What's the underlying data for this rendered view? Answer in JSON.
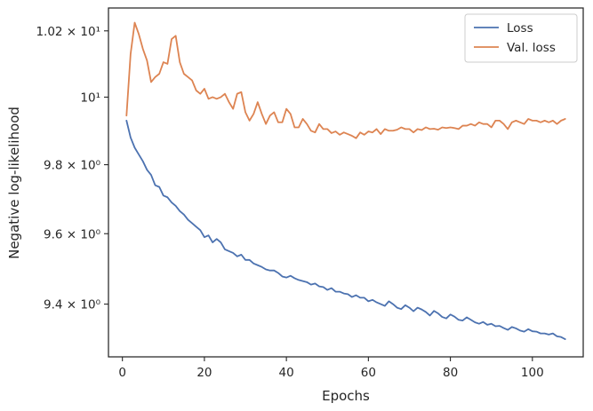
{
  "chart_data": {
    "type": "line",
    "xlabel": "Epochs",
    "ylabel": "Negative log-likelihood",
    "xlim": [
      -3.4,
      112.4
    ],
    "ylim": [
      9.253,
      10.27
    ],
    "y_scale": "log",
    "grid": false,
    "legend_position": "top-right",
    "x_ticks": [
      {
        "value": 0,
        "label": "0"
      },
      {
        "value": 20,
        "label": "20"
      },
      {
        "value": 40,
        "label": "40"
      },
      {
        "value": 60,
        "label": "60"
      },
      {
        "value": 80,
        "label": "80"
      },
      {
        "value": 100,
        "label": "100"
      }
    ],
    "y_ticks": [
      {
        "value": 9.4,
        "label": "9.4 × 10⁰"
      },
      {
        "value": 9.6,
        "label": "9.6 × 10⁰"
      },
      {
        "value": 9.8,
        "label": "9.8 × 10⁰"
      },
      {
        "value": 10.0,
        "label": "10¹"
      },
      {
        "value": 10.2,
        "label": "1.02 × 10¹"
      }
    ],
    "series": [
      {
        "name": "Loss",
        "color": "#4c72b0",
        "x": [
          1,
          2,
          3,
          4,
          5,
          6,
          7,
          8,
          9,
          10,
          11,
          12,
          13,
          14,
          15,
          16,
          17,
          18,
          19,
          20,
          21,
          22,
          23,
          24,
          25,
          26,
          27,
          28,
          29,
          30,
          31,
          32,
          33,
          34,
          35,
          36,
          37,
          38,
          39,
          40,
          41,
          42,
          43,
          44,
          45,
          46,
          47,
          48,
          49,
          50,
          51,
          52,
          53,
          54,
          55,
          56,
          57,
          58,
          59,
          60,
          61,
          62,
          63,
          64,
          65,
          66,
          67,
          68,
          69,
          70,
          71,
          72,
          73,
          74,
          75,
          76,
          77,
          78,
          79,
          80,
          81,
          82,
          83,
          84,
          85,
          86,
          87,
          88,
          89,
          90,
          91,
          92,
          93,
          94,
          95,
          96,
          97,
          98,
          99,
          100,
          101,
          102,
          103,
          104,
          105,
          106,
          107,
          108
        ],
        "values": [
          9.93,
          9.88,
          9.85,
          9.83,
          9.81,
          9.785,
          9.77,
          9.74,
          9.735,
          9.71,
          9.705,
          9.69,
          9.68,
          9.665,
          9.655,
          9.64,
          9.63,
          9.62,
          9.61,
          9.59,
          9.595,
          9.575,
          9.585,
          9.575,
          9.555,
          9.55,
          9.545,
          9.535,
          9.54,
          9.525,
          9.525,
          9.515,
          9.51,
          9.505,
          9.498,
          9.495,
          9.495,
          9.488,
          9.478,
          9.475,
          9.48,
          9.473,
          9.468,
          9.465,
          9.462,
          9.455,
          9.458,
          9.45,
          9.448,
          9.44,
          9.445,
          9.435,
          9.435,
          9.43,
          9.428,
          9.42,
          9.425,
          9.418,
          9.418,
          9.408,
          9.412,
          9.405,
          9.4,
          9.395,
          9.408,
          9.4,
          9.39,
          9.386,
          9.397,
          9.39,
          9.38,
          9.39,
          9.385,
          9.378,
          9.368,
          9.381,
          9.374,
          9.364,
          9.36,
          9.371,
          9.365,
          9.356,
          9.354,
          9.363,
          9.356,
          9.349,
          9.345,
          9.35,
          9.342,
          9.345,
          9.338,
          9.339,
          9.333,
          9.328,
          9.336,
          9.332,
          9.326,
          9.323,
          9.33,
          9.324,
          9.323,
          9.318,
          9.318,
          9.315,
          9.318,
          9.31,
          9.308,
          9.302
        ]
      },
      {
        "name": "Val. loss",
        "color": "#dd8452",
        "x": [
          1,
          2,
          3,
          4,
          5,
          6,
          7,
          8,
          9,
          10,
          11,
          12,
          13,
          14,
          15,
          16,
          17,
          18,
          19,
          20,
          21,
          22,
          23,
          24,
          25,
          26,
          27,
          28,
          29,
          30,
          31,
          32,
          33,
          34,
          35,
          36,
          37,
          38,
          39,
          40,
          41,
          42,
          43,
          44,
          45,
          46,
          47,
          48,
          49,
          50,
          51,
          52,
          53,
          54,
          55,
          56,
          57,
          58,
          59,
          60,
          61,
          62,
          63,
          64,
          65,
          66,
          67,
          68,
          69,
          70,
          71,
          72,
          73,
          74,
          75,
          76,
          77,
          78,
          79,
          80,
          81,
          82,
          83,
          84,
          85,
          86,
          87,
          88,
          89,
          90,
          91,
          92,
          93,
          94,
          95,
          96,
          97,
          98,
          99,
          100,
          101,
          102,
          103,
          104,
          105,
          106,
          107,
          108
        ],
        "values": [
          9.945,
          10.13,
          10.225,
          10.19,
          10.145,
          10.11,
          10.045,
          10.06,
          10.07,
          10.105,
          10.1,
          10.175,
          10.185,
          10.105,
          10.07,
          10.06,
          10.05,
          10.02,
          10.01,
          10.025,
          9.995,
          10.0,
          9.995,
          10.0,
          10.01,
          9.985,
          9.965,
          10.01,
          10.015,
          9.955,
          9.93,
          9.95,
          9.985,
          9.95,
          9.92,
          9.945,
          9.955,
          9.925,
          9.925,
          9.965,
          9.95,
          9.91,
          9.91,
          9.935,
          9.92,
          9.9,
          9.895,
          9.92,
          9.905,
          9.905,
          9.893,
          9.898,
          9.888,
          9.895,
          9.89,
          9.885,
          9.878,
          9.895,
          9.888,
          9.898,
          9.895,
          9.905,
          9.89,
          9.905,
          9.9,
          9.9,
          9.903,
          9.91,
          9.905,
          9.905,
          9.895,
          9.905,
          9.902,
          9.91,
          9.905,
          9.906,
          9.903,
          9.91,
          9.908,
          9.91,
          9.908,
          9.905,
          9.915,
          9.915,
          9.92,
          9.915,
          9.925,
          9.92,
          9.92,
          9.91,
          9.93,
          9.93,
          9.92,
          9.905,
          9.925,
          9.93,
          9.925,
          9.92,
          9.935,
          9.93,
          9.93,
          9.925,
          9.93,
          9.925,
          9.93,
          9.92,
          9.93,
          9.935
        ]
      }
    ]
  }
}
